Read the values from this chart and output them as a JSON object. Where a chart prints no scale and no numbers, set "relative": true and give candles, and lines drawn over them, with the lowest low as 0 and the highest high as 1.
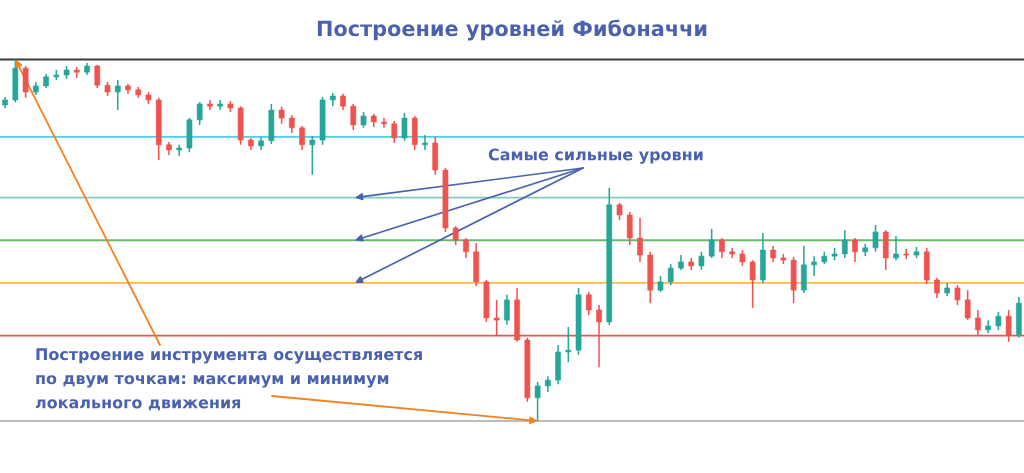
{
  "chart_data": {
    "type": "candlestick",
    "title": "Построение уровней Фибоначчи",
    "annotations": [
      "Самые сильные уровни",
      "Построение инструмента осуществляется\nпо двум точкам: максимум и минимум\nлокального движения"
    ],
    "relative": true,
    "categories": [
      null,
      null,
      null,
      null,
      null,
      null,
      null,
      null,
      null,
      null,
      null,
      null,
      null,
      null,
      null,
      null,
      null,
      null,
      null,
      null,
      null,
      null,
      null,
      null,
      null,
      null,
      null,
      null,
      null,
      null,
      null,
      null,
      null,
      null,
      null,
      null,
      null,
      null,
      null,
      null,
      null,
      null,
      null,
      null,
      null,
      null,
      null,
      null,
      null,
      null,
      null,
      null,
      null,
      null,
      null,
      null,
      null,
      null,
      null,
      null,
      null,
      null,
      null,
      null,
      null,
      null,
      null,
      null,
      null,
      null,
      null,
      null,
      null,
      null,
      null,
      null,
      null,
      null,
      null,
      null,
      null,
      null,
      null,
      null,
      null,
      null,
      null,
      null,
      null,
      null,
      null,
      null,
      null,
      null,
      null,
      null,
      null,
      null,
      null,
      null
    ],
    "ohlc": [
      [
        0.874,
        0.896,
        0.866,
        0.888
      ],
      [
        0.888,
        1,
        0.882,
        0.976
      ],
      [
        0.976,
        0.982,
        0.894,
        0.91
      ],
      [
        0.91,
        0.938,
        0.902,
        0.927
      ],
      [
        0.927,
        0.96,
        0.921,
        0.952
      ],
      [
        0.952,
        0.971,
        0.943,
        0.957
      ],
      [
        0.957,
        0.982,
        0.946,
        0.971
      ],
      [
        0.971,
        0.979,
        0.949,
        0.965
      ],
      [
        0.965,
        0.99,
        0.957,
        0.982
      ],
      [
        0.982,
        0.985,
        0.921,
        0.929
      ],
      [
        0.929,
        0.938,
        0.899,
        0.91
      ],
      [
        0.91,
        0.943,
        0.86,
        0.927
      ],
      [
        0.927,
        0.932,
        0.905,
        0.916
      ],
      [
        0.916,
        0.924,
        0.894,
        0.902
      ],
      [
        0.902,
        0.91,
        0.877,
        0.888
      ],
      [
        0.888,
        0.894,
        0.722,
        0.764
      ],
      [
        0.764,
        0.772,
        0.736,
        0.75
      ],
      [
        0.75,
        0.764,
        0.733,
        0.755
      ],
      [
        0.755,
        0.838,
        0.744,
        0.833
      ],
      [
        0.833,
        0.882,
        0.819,
        0.877
      ],
      [
        0.877,
        0.888,
        0.86,
        0.871
      ],
      [
        0.871,
        0.888,
        0.86,
        0.877
      ],
      [
        0.877,
        0.885,
        0.855,
        0.866
      ],
      [
        0.866,
        0.871,
        0.764,
        0.777
      ],
      [
        0.777,
        0.783,
        0.75,
        0.761
      ],
      [
        0.761,
        0.786,
        0.75,
        0.775
      ],
      [
        0.775,
        0.877,
        0.766,
        0.86
      ],
      [
        0.86,
        0.869,
        0.822,
        0.838
      ],
      [
        0.838,
        0.846,
        0.797,
        0.811
      ],
      [
        0.811,
        0.816,
        0.75,
        0.764
      ],
      [
        0.764,
        0.788,
        0.681,
        0.777
      ],
      [
        0.777,
        0.896,
        0.764,
        0.888
      ],
      [
        0.888,
        0.907,
        0.871,
        0.899
      ],
      [
        0.899,
        0.905,
        0.86,
        0.871
      ],
      [
        0.871,
        0.877,
        0.805,
        0.819
      ],
      [
        0.819,
        0.855,
        0.811,
        0.844
      ],
      [
        0.844,
        0.849,
        0.813,
        0.827
      ],
      [
        0.827,
        0.838,
        0.811,
        0.822
      ],
      [
        0.822,
        0.83,
        0.769,
        0.783
      ],
      [
        0.783,
        0.852,
        0.775,
        0.838
      ],
      [
        0.838,
        0.844,
        0.75,
        0.764
      ],
      [
        0.764,
        0.791,
        0.75,
        0.769
      ],
      [
        0.769,
        0.786,
        0.681,
        0.694
      ],
      [
        0.694,
        0.7,
        0.523,
        0.534
      ],
      [
        0.534,
        0.539,
        0.487,
        0.501
      ],
      [
        0.501,
        0.506,
        0.451,
        0.468
      ],
      [
        0.468,
        0.492,
        0.373,
        0.385
      ],
      [
        0.385,
        0.39,
        0.274,
        0.285
      ],
      [
        0.285,
        0.335,
        0.235,
        0.279
      ],
      [
        0.279,
        0.349,
        0.266,
        0.335
      ],
      [
        0.335,
        0.368,
        0.219,
        0.224
      ],
      [
        0.224,
        0.23,
        0.053,
        0.064
      ],
      [
        0.064,
        0.108,
        0,
        0.097
      ],
      [
        0.097,
        0.124,
        0.08,
        0.113
      ],
      [
        0.113,
        0.21,
        0.102,
        0.191
      ],
      [
        0.191,
        0.26,
        0.163,
        0.196
      ],
      [
        0.196,
        0.368,
        0.183,
        0.349
      ],
      [
        0.349,
        0.357,
        0.293,
        0.307
      ],
      [
        0.307,
        0.321,
        0.149,
        0.274
      ],
      [
        0.274,
        0.645,
        0.266,
        0.598
      ],
      [
        0.598,
        0.603,
        0.556,
        0.57
      ],
      [
        0.57,
        0.578,
        0.487,
        0.506
      ],
      [
        0.506,
        0.562,
        0.44,
        0.459
      ],
      [
        0.459,
        0.468,
        0.326,
        0.362
      ],
      [
        0.362,
        0.401,
        0.357,
        0.385
      ],
      [
        0.385,
        0.434,
        0.376,
        0.423
      ],
      [
        0.423,
        0.459,
        0.418,
        0.44
      ],
      [
        0.44,
        0.451,
        0.418,
        0.429
      ],
      [
        0.429,
        0.468,
        0.418,
        0.456
      ],
      [
        0.456,
        0.531,
        0.451,
        0.501
      ],
      [
        0.501,
        0.506,
        0.451,
        0.468
      ],
      [
        0.468,
        0.479,
        0.451,
        0.462
      ],
      [
        0.462,
        0.473,
        0.429,
        0.44
      ],
      [
        0.44,
        0.445,
        0.313,
        0.39
      ],
      [
        0.39,
        0.52,
        0.382,
        0.473
      ],
      [
        0.473,
        0.484,
        0.44,
        0.451
      ],
      [
        0.451,
        0.462,
        0.434,
        0.445
      ],
      [
        0.445,
        0.454,
        0.326,
        0.362
      ],
      [
        0.362,
        0.484,
        0.354,
        0.432
      ],
      [
        0.432,
        0.456,
        0.401,
        0.44
      ],
      [
        0.44,
        0.468,
        0.434,
        0.456
      ],
      [
        0.456,
        0.479,
        0.445,
        0.462
      ],
      [
        0.462,
        0.528,
        0.451,
        0.501
      ],
      [
        0.501,
        0.506,
        0.44,
        0.468
      ],
      [
        0.468,
        0.49,
        0.456,
        0.479
      ],
      [
        0.479,
        0.542,
        0.468,
        0.523
      ],
      [
        0.523,
        0.528,
        0.418,
        0.451
      ],
      [
        0.451,
        0.512,
        0.445,
        0.462
      ],
      [
        0.462,
        0.476,
        0.448,
        0.459
      ],
      [
        0.459,
        0.481,
        0.451,
        0.468
      ],
      [
        0.468,
        0.479,
        0.379,
        0.39
      ],
      [
        0.39,
        0.396,
        0.34,
        0.354
      ],
      [
        0.354,
        0.382,
        0.346,
        0.368
      ],
      [
        0.368,
        0.376,
        0.321,
        0.335
      ],
      [
        0.335,
        0.362,
        0.279,
        0.285
      ],
      [
        0.285,
        0.307,
        0.235,
        0.252
      ],
      [
        0.252,
        0.279,
        0.243,
        0.263
      ],
      [
        0.263,
        0.302,
        0.252,
        0.29
      ],
      [
        0.29,
        0.307,
        0.219,
        0.238
      ],
      [
        0.238,
        0.343,
        0.23,
        0.326
      ]
    ],
    "colors": [
      "#26a69a",
      "#26a69a",
      "#ef5350",
      "#26a69a",
      "#26a69a",
      "#26a69a",
      "#26a69a",
      "#ef5350",
      "#26a69a",
      "#ef5350",
      "#ef5350",
      "#26a69a",
      "#ef5350",
      "#ef5350",
      "#ef5350",
      "#ef5350",
      "#ef5350",
      "#26a69a",
      "#26a69a",
      "#26a69a",
      "#ef5350",
      "#26a69a",
      "#ef5350",
      "#ef5350",
      "#ef5350",
      "#26a69a",
      "#26a69a",
      "#ef5350",
      "#ef5350",
      "#ef5350",
      "#26a69a",
      "#26a69a",
      "#26a69a",
      "#ef5350",
      "#ef5350",
      "#26a69a",
      "#ef5350",
      "#ef5350",
      "#ef5350",
      "#26a69a",
      "#ef5350",
      "#26a69a",
      "#ef5350",
      "#ef5350",
      "#ef5350",
      "#ef5350",
      "#ef5350",
      "#ef5350",
      "#ef5350",
      "#26a69a",
      "#ef5350",
      "#ef5350",
      "#26a69a",
      "#26a69a",
      "#26a69a",
      "#26a69a",
      "#26a69a",
      "#ef5350",
      "#ef5350",
      "#26a69a",
      "#ef5350",
      "#ef5350",
      "#ef5350",
      "#ef5350",
      "#26a69a",
      "#26a69a",
      "#26a69a",
      "#ef5350",
      "#26a69a",
      "#26a69a",
      "#ef5350",
      "#ef5350",
      "#ef5350",
      "#ef5350",
      "#26a69a",
      "#ef5350",
      "#ef5350",
      "#ef5350",
      "#26a69a",
      "#26a69a",
      "#26a69a",
      "#26a69a",
      "#26a69a",
      "#ef5350",
      "#26a69a",
      "#26a69a",
      "#ef5350",
      "#26a69a",
      "#ef5350",
      "#26a69a",
      "#ef5350",
      "#ef5350",
      "#26a69a",
      "#ef5350",
      "#ef5350",
      "#ef5350",
      "#26a69a",
      "#26a69a",
      "#ef5350",
      "#26a69a"
    ],
    "ref_lines": [
      {
        "axis": "y",
        "value": 1,
        "color": "#3a3a3a"
      },
      {
        "axis": "y",
        "value": 0.786,
        "color": "#4dd0e1"
      },
      {
        "axis": "y",
        "value": 0.618,
        "color": "#80cbc4"
      },
      {
        "axis": "y",
        "value": 0.5,
        "color": "#66bb6a"
      },
      {
        "axis": "y",
        "value": 0.382,
        "color": "#ffb74d"
      },
      {
        "axis": "y",
        "value": 0.236,
        "color": "#ef5350"
      },
      {
        "axis": "y",
        "value": 0,
        "color": "#bdbdbd"
      }
    ]
  }
}
